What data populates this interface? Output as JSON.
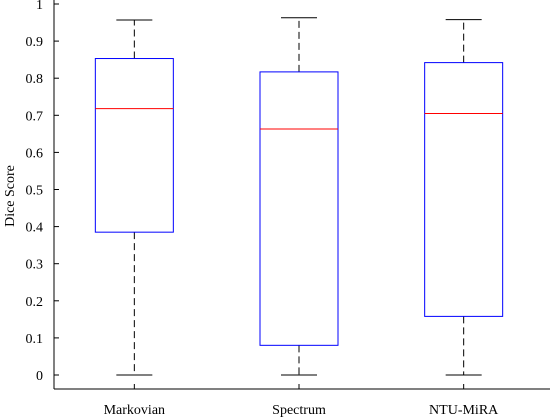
{
  "chart_data": {
    "type": "box",
    "ylabel": "Dice Score",
    "xlabel": "",
    "title": "",
    "ylim": [
      0,
      1
    ],
    "yticks": [
      0,
      0.1,
      0.2,
      0.3,
      0.4,
      0.5,
      0.6,
      0.7,
      0.8,
      0.9,
      1
    ],
    "ytick_labels": [
      "0",
      "0.1",
      "0.2",
      "0.3",
      "0.4",
      "0.5",
      "0.6",
      "0.7",
      "0.8",
      "0.9",
      "1"
    ],
    "grid": false,
    "categories": [
      "Markovian",
      "Spectrum",
      "NTU-MiRA"
    ],
    "boxes": [
      {
        "name": "Markovian",
        "whisker_low": 0.0,
        "q1": 0.385,
        "median": 0.718,
        "q3": 0.853,
        "whisker_high": 0.957
      },
      {
        "name": "Spectrum",
        "whisker_low": 0.0,
        "q1": 0.08,
        "median": 0.663,
        "q3": 0.817,
        "whisker_high": 0.963
      },
      {
        "name": "NTU-MiRA",
        "whisker_low": 0.0,
        "q1": 0.158,
        "median": 0.705,
        "q3": 0.842,
        "whisker_high": 0.958
      }
    ],
    "colors": {
      "box": "#0000ff",
      "median": "#ff0000",
      "whisker": "#000000",
      "axis": "#000000"
    }
  }
}
